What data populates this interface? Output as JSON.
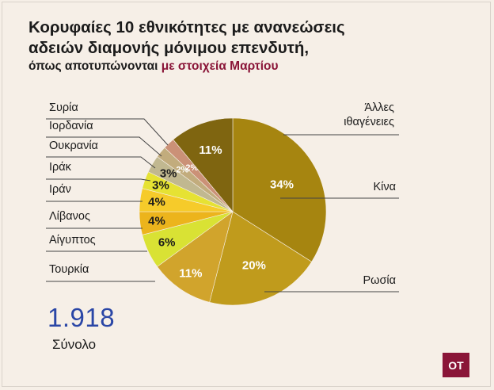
{
  "title_line1": "Κορυφαίες 10 εθνικότητες με ανανεώσεις",
  "title_line2": "αδειών διαμονής μόνιμου επενδυτή,",
  "subtitle_prefix": "όπως αποτυπώνονται",
  "subtitle_highlight": "με στοιχεία Μαρτίου",
  "total": {
    "value": "1.918",
    "label": "Σύνολο"
  },
  "logo": "OT",
  "chart_data": {
    "type": "pie",
    "unit": "%",
    "slices": [
      {
        "name": "Κίνα",
        "label": "Κίνα",
        "value": 34,
        "value_label": "34%",
        "color": "#a68510"
      },
      {
        "name": "Ρωσία",
        "label": "Ρωσία",
        "value": 20,
        "value_label": "20%",
        "color": "#c09b1c"
      },
      {
        "name": "Τουρκία",
        "label": "Τουρκία",
        "value": 11,
        "value_label": "11%",
        "color": "#d1a42c"
      },
      {
        "name": "Αίγυπτος",
        "label": "Αίγυπτος",
        "value": 6,
        "value_label": "6%",
        "color": "#d9e234"
      },
      {
        "name": "Λίβανος",
        "label": "Λίβανος",
        "value": 4,
        "value_label": "4%",
        "color": "#ecb41c"
      },
      {
        "name": "Ιράν",
        "label": "Ιράν",
        "value": 4,
        "value_label": "4%",
        "color": "#f6cb2a"
      },
      {
        "name": "Ιράκ",
        "label": "Ιράκ",
        "value": 3,
        "value_label": "3%",
        "color": "#e6e233"
      },
      {
        "name": "Ουκρανία",
        "label": "Ουκρανία",
        "value": 3,
        "value_label": "3%",
        "color": "#c1b890"
      },
      {
        "name": "Ιορδανία",
        "label": "Ιορδανία",
        "value": 2,
        "value_label": "2%",
        "color": "#c2ac7d"
      },
      {
        "name": "Συρία",
        "label": "Συρία",
        "value": 2,
        "value_label": "2%",
        "color": "#cb9177"
      },
      {
        "name": "Άλλες ιθαγένειες",
        "label": "Άλλες\nιθαγένειες",
        "value": 11,
        "value_label": "11%",
        "color": "#7f6510"
      }
    ]
  }
}
